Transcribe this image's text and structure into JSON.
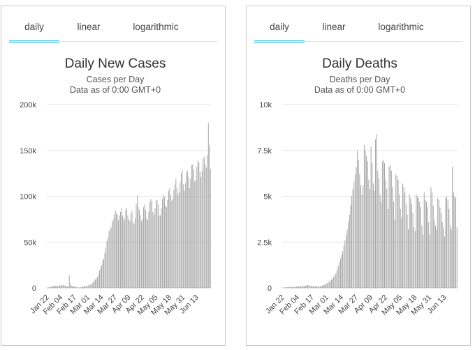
{
  "tabs": [
    "daily",
    "linear",
    "logarithmic"
  ],
  "active_tab": 0,
  "charts": [
    {
      "title": "Daily New Cases",
      "subtitle": "Cases per Day",
      "subtitle2": "Data as of 0:00 GMT+0"
    },
    {
      "title": "Daily Deaths",
      "subtitle": "Deaths per Day",
      "subtitle2": "Data as of 0:00 GMT+0"
    }
  ],
  "chart_data": [
    {
      "type": "bar",
      "title": "Daily New Cases",
      "subtitle": "Cases per Day",
      "ylim": [
        0,
        200000
      ],
      "yticks": [
        0,
        50000,
        100000,
        150000,
        200000
      ],
      "ytick_labels": [
        "0",
        "50k",
        "100k",
        "150k",
        "200k"
      ],
      "x_tick_labels": [
        "Jan 22",
        "Feb 04",
        "Feb 17",
        "Mar 01",
        "Mar 14",
        "Mar 27",
        "Apr 09",
        "Apr 22",
        "May 05",
        "May 18",
        "May 31",
        "Jun 13"
      ],
      "x_tick_step": 13,
      "grid": true,
      "bar_color": "#999999",
      "values": [
        500,
        600,
        700,
        1000,
        1500,
        1800,
        2000,
        2300,
        2400,
        2200,
        2000,
        2500,
        2800,
        3000,
        2900,
        3100,
        2700,
        2600,
        2400,
        1900,
        1800,
        14000,
        5000,
        2500,
        2000,
        2200,
        1500,
        1200,
        900,
        600,
        500,
        600,
        900,
        1200,
        1400,
        2000,
        2100,
        1800,
        2200,
        2900,
        3000,
        3700,
        4500,
        5000,
        6500,
        8000,
        9500,
        10500,
        12000,
        15000,
        19000,
        22000,
        25000,
        30000,
        32000,
        38000,
        44000,
        51000,
        55000,
        62000,
        64000,
        66000,
        72000,
        75000,
        80000,
        85000,
        82000,
        80000,
        74000,
        79000,
        83000,
        87000,
        79000,
        77000,
        74000,
        85000,
        87000,
        79000,
        75000,
        73000,
        81000,
        84000,
        72000,
        70000,
        76000,
        92000,
        101000,
        88000,
        85000,
        79000,
        73000,
        75000,
        88000,
        91000,
        85000,
        76000,
        74000,
        83000,
        94000,
        97000,
        95000,
        83000,
        80000,
        87000,
        95000,
        96000,
        91000,
        79000,
        79000,
        87000,
        97000,
        102000,
        99000,
        90000,
        88000,
        96000,
        106000,
        109000,
        101000,
        95000,
        97000,
        107000,
        113000,
        119000,
        109000,
        102000,
        104000,
        115000,
        125000,
        129000,
        113000,
        106000,
        114000,
        126000,
        128000,
        121000,
        109000,
        119000,
        134000,
        135000,
        129000,
        116000,
        118000,
        132000,
        139000,
        137000,
        127000,
        121000,
        128000,
        141000,
        143000,
        135000,
        131000,
        145000,
        180000,
        156000,
        130000
      ]
    },
    {
      "type": "bar",
      "title": "Daily Deaths",
      "subtitle": "Deaths per Day",
      "ylim": [
        0,
        10000
      ],
      "yticks": [
        0,
        2500,
        5000,
        7500,
        10000
      ],
      "ytick_labels": [
        "0",
        "2.5k",
        "5k",
        "7.5k",
        "10k"
      ],
      "x_tick_labels": [
        "Jan 22",
        "Feb 04",
        "Feb 17",
        "Mar 01",
        "Mar 14",
        "Mar 27",
        "Apr 09",
        "Apr 22",
        "May 05",
        "May 18",
        "May 31",
        "Jun 13"
      ],
      "x_tick_step": 13,
      "grid": true,
      "bar_color": "#999999",
      "values": [
        20,
        25,
        30,
        35,
        40,
        40,
        45,
        50,
        55,
        60,
        60,
        70,
        80,
        80,
        90,
        90,
        100,
        100,
        105,
        110,
        120,
        130,
        140,
        150,
        130,
        120,
        110,
        100,
        100,
        90,
        80,
        80,
        90,
        100,
        110,
        120,
        150,
        180,
        200,
        250,
        300,
        350,
        400,
        450,
        500,
        600,
        700,
        800,
        1000,
        1200,
        1400,
        1600,
        1800,
        2000,
        2300,
        2600,
        2900,
        3200,
        3600,
        4000,
        4500,
        5000,
        5400,
        5800,
        6200,
        6600,
        7500,
        7000,
        6200,
        5600,
        5100,
        5600,
        7800,
        7500,
        7200,
        6900,
        5900,
        5400,
        7700,
        6800,
        5700,
        5300,
        8100,
        8400,
        6400,
        6000,
        5100,
        4700,
        6900,
        7000,
        6800,
        5900,
        5400,
        4300,
        6600,
        6700,
        6400,
        5500,
        4700,
        3700,
        6200,
        6100,
        5900,
        5100,
        4300,
        3800,
        5700,
        5500,
        5200,
        4600,
        4000,
        3200,
        5100,
        4900,
        4600,
        4100,
        3300,
        3100,
        5100,
        5000,
        4900,
        4700,
        4400,
        3400,
        2900,
        5200,
        4800,
        4700,
        4400,
        3600,
        2900,
        5500,
        5200,
        4500,
        3700,
        3400,
        3200,
        4900,
        4800,
        4400,
        4100,
        3600,
        3300,
        2800,
        4900,
        5000,
        4800,
        4300,
        3400,
        3200,
        6600,
        5200,
        5000,
        4900,
        3300
      ]
    }
  ]
}
